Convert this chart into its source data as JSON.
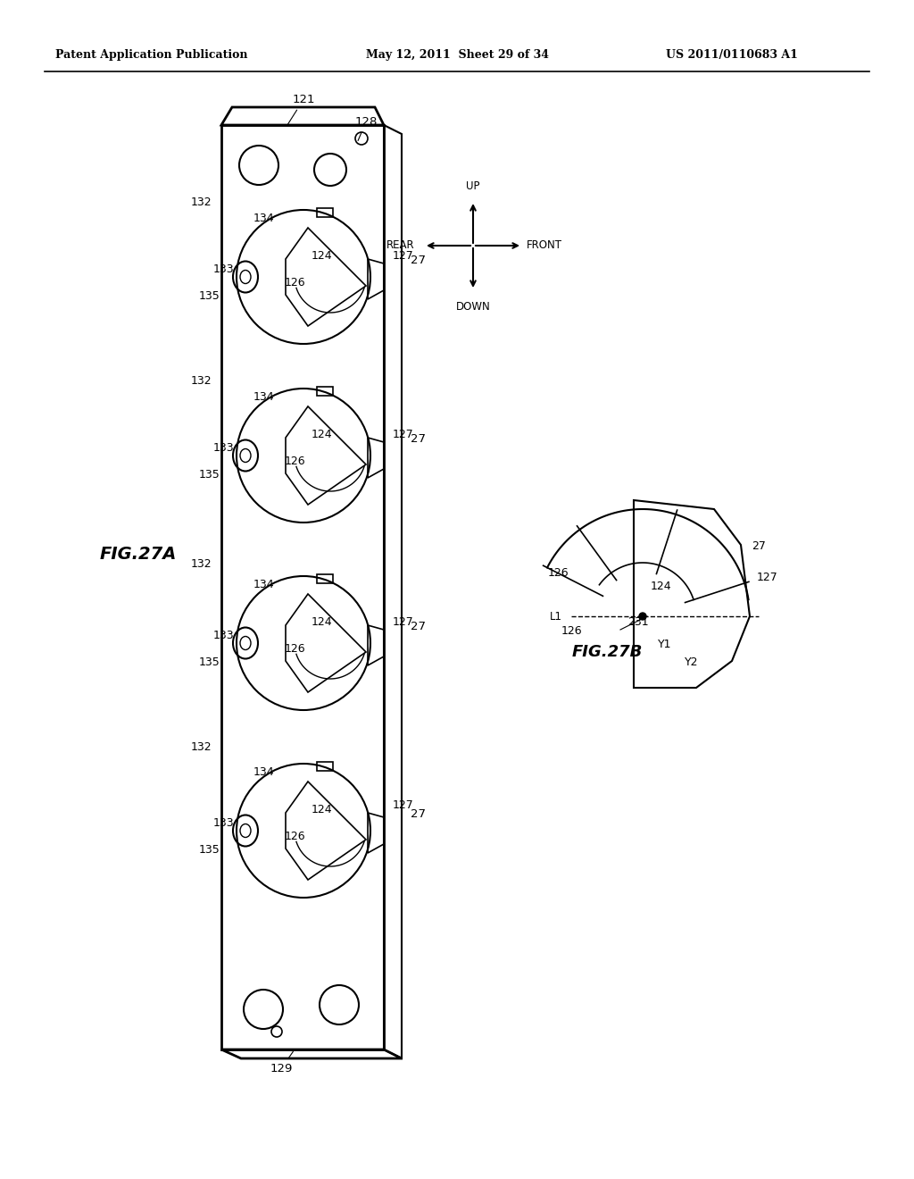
{
  "title_left": "Patent Application Publication",
  "title_mid": "May 12, 2011  Sheet 29 of 34",
  "title_right": "US 2011/0110683 A1",
  "fig_a_label": "FIG.27A",
  "fig_b_label": "FIG.27B",
  "bg_color": "#ffffff",
  "line_color": "#000000",
  "text_color": "#000000"
}
